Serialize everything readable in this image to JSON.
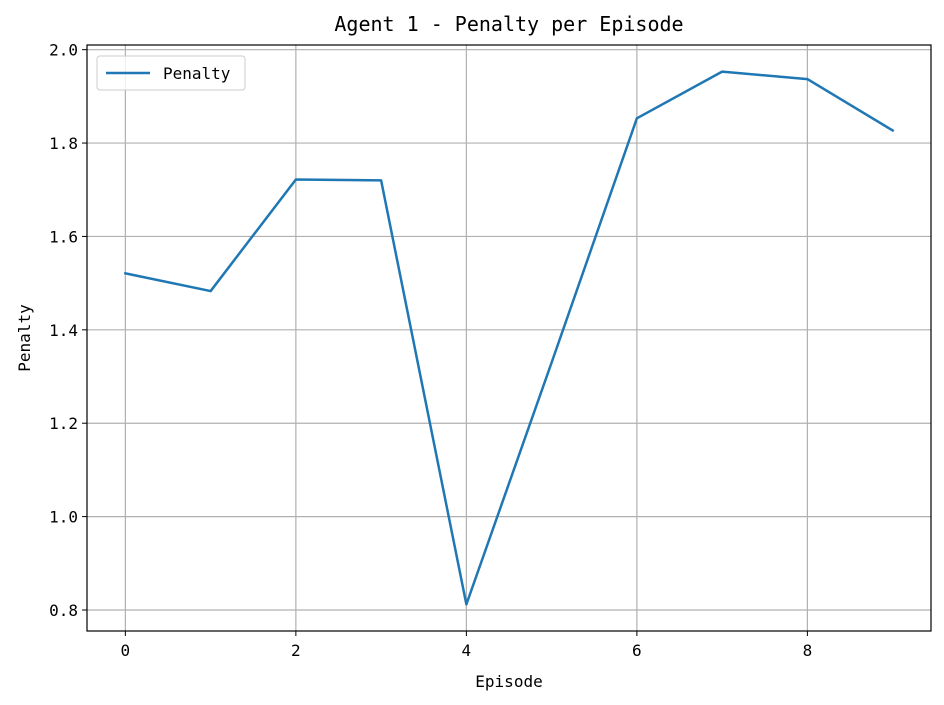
{
  "chart_data": {
    "type": "line",
    "title": "Agent 1 - Penalty per Episode",
    "xlabel": "Episode",
    "ylabel": "Penalty",
    "xlim": [
      -0.45,
      9.45
    ],
    "ylim": [
      0.755,
      2.01
    ],
    "xticks": [
      0,
      2,
      4,
      6,
      8
    ],
    "xtick_labels": [
      "0",
      "2",
      "4",
      "6",
      "8"
    ],
    "yticks": [
      0.8,
      1.0,
      1.2,
      1.4,
      1.6,
      1.8,
      2.0
    ],
    "ytick_labels": [
      "0.8",
      "1.0",
      "1.2",
      "1.4",
      "1.6",
      "1.8",
      "2.0"
    ],
    "grid": true,
    "legend_position": "upper-left",
    "x": [
      0,
      1,
      2,
      3,
      4,
      5,
      6,
      7,
      8,
      9
    ],
    "series": [
      {
        "name": "Penalty",
        "color": "#1f77b4",
        "values": [
          1.521,
          1.483,
          1.722,
          1.72,
          0.812,
          1.33,
          1.853,
          1.953,
          1.937,
          1.827
        ]
      }
    ]
  }
}
